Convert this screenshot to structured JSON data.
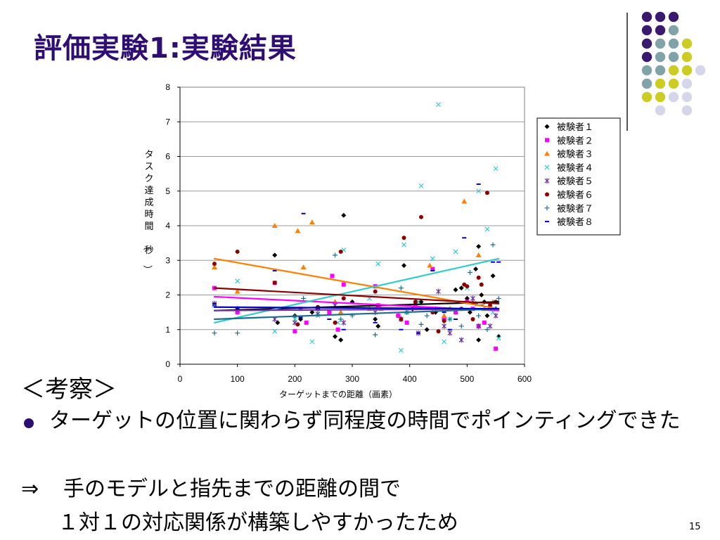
{
  "slide": {
    "title": "評価実験1:実験結果",
    "consider_heading": "＜考察＞",
    "bullet_text": "ターゲットの位置に関わらず同程度の時間でポインティングできた",
    "arrow_symbol": "⇒",
    "arrow_text": "手のモデルと指先までの距離の間で",
    "indent_text": "１対１の対応関係が構築しやすかったため",
    "page_number": "15"
  },
  "decoration": {
    "colors": [
      "#3a1a6e",
      "#7fa3a6",
      "#cccc22",
      "#d6d6ea"
    ],
    "dot_grid": [
      [
        "a",
        "a",
        "a",
        null,
        null
      ],
      [
        "a",
        "a",
        "b",
        null,
        null
      ],
      [
        "a",
        "b",
        "b",
        "c",
        null
      ],
      [
        "a",
        "b",
        "b",
        "c",
        null
      ],
      [
        "b",
        "b",
        "c",
        "c",
        "d"
      ],
      [
        "b",
        "c",
        "c",
        "d",
        null
      ],
      [
        "c",
        "c",
        "d",
        "d",
        null
      ],
      [
        null,
        "d",
        null,
        "d",
        null
      ]
    ]
  },
  "chart_data": {
    "type": "scatter",
    "xlabel": "ターゲットまでの距離（画素）",
    "ylabel": "タスク達成時間（秒）",
    "xlim": [
      0,
      600
    ],
    "ylim": [
      0,
      8
    ],
    "xticks": [
      "0",
      "100",
      "200",
      "300",
      "400",
      "500",
      "600"
    ],
    "yticks": [
      "0",
      "1",
      "2",
      "3",
      "4",
      "5",
      "6",
      "7",
      "8"
    ],
    "grid": true,
    "legend_position": "right",
    "series": [
      {
        "name": "被験者１",
        "color": "#000000",
        "marker": "diamond",
        "trend": [
          [
            60,
            1.55
          ],
          [
            555,
            1.8
          ]
        ],
        "points": [
          [
            60,
            1.7
          ],
          [
            100,
            1.5
          ],
          [
            170,
            1.2
          ],
          [
            165,
            3.15
          ],
          [
            200,
            1.4
          ],
          [
            210,
            1.3
          ],
          [
            230,
            1.5
          ],
          [
            240,
            1.6
          ],
          [
            270,
            0.8
          ],
          [
            280,
            0.7
          ],
          [
            285,
            4.3
          ],
          [
            300,
            1.8
          ],
          [
            340,
            1.3
          ],
          [
            345,
            1.1
          ],
          [
            380,
            1.4
          ],
          [
            390,
            2.85
          ],
          [
            405,
            1.6
          ],
          [
            420,
            1.8
          ],
          [
            430,
            1.0
          ],
          [
            445,
            1.5
          ],
          [
            460,
            1.3
          ],
          [
            470,
            1.6
          ],
          [
            480,
            2.15
          ],
          [
            490,
            2.2
          ],
          [
            500,
            1.9
          ],
          [
            505,
            1.5
          ],
          [
            515,
            2.75
          ],
          [
            520,
            3.4
          ],
          [
            525,
            2.0
          ],
          [
            520,
            0.7
          ],
          [
            530,
            1.8
          ],
          [
            535,
            1.4
          ],
          [
            545,
            2.55
          ],
          [
            550,
            1.6
          ],
          [
            555,
            0.8
          ]
        ]
      },
      {
        "name": "被験者２",
        "color": "#ff00ff",
        "marker": "square",
        "trend": [
          [
            60,
            1.95
          ],
          [
            555,
            1.55
          ]
        ],
        "points": [
          [
            60,
            2.2
          ],
          [
            100,
            1.5
          ],
          [
            165,
            2.35
          ],
          [
            200,
            0.95
          ],
          [
            210,
            1.6
          ],
          [
            220,
            1.2
          ],
          [
            260,
            1.5
          ],
          [
            265,
            2.55
          ],
          [
            275,
            1.0
          ],
          [
            285,
            2.3
          ],
          [
            340,
            2.25
          ],
          [
            345,
            1.7
          ],
          [
            380,
            1.4
          ],
          [
            395,
            1.2
          ],
          [
            410,
            1.7
          ],
          [
            440,
            2.75
          ],
          [
            460,
            1.3
          ],
          [
            480,
            1.5
          ],
          [
            500,
            1.8
          ],
          [
            510,
            1.6
          ],
          [
            520,
            1.1
          ],
          [
            530,
            1.2
          ],
          [
            540,
            1.6
          ],
          [
            550,
            0.45
          ]
        ]
      },
      {
        "name": "被験者３",
        "color": "#ff7f00",
        "marker": "triangle",
        "trend": [
          [
            60,
            3.05
          ],
          [
            555,
            1.6
          ]
        ],
        "points": [
          [
            60,
            2.8
          ],
          [
            100,
            2.1
          ],
          [
            165,
            4.0
          ],
          [
            205,
            3.85
          ],
          [
            215,
            2.8
          ],
          [
            230,
            4.1
          ],
          [
            270,
            1.8
          ],
          [
            280,
            1.5
          ],
          [
            330,
            1.6
          ],
          [
            350,
            1.6
          ],
          [
            395,
            1.5
          ],
          [
            435,
            2.85
          ],
          [
            460,
            1.4
          ],
          [
            470,
            1.6
          ],
          [
            495,
            4.7
          ],
          [
            510,
            1.8
          ],
          [
            520,
            3.15
          ],
          [
            530,
            1.6
          ],
          [
            545,
            1.8
          ]
        ]
      },
      {
        "name": "被験者４",
        "color": "#33cccc",
        "marker": "x",
        "trend": [
          [
            60,
            1.2
          ],
          [
            555,
            3.05
          ]
        ],
        "points": [
          [
            60,
            1.7
          ],
          [
            100,
            2.4
          ],
          [
            165,
            0.95
          ],
          [
            200,
            1.3
          ],
          [
            230,
            0.65
          ],
          [
            240,
            1.4
          ],
          [
            275,
            1.2
          ],
          [
            285,
            3.3
          ],
          [
            330,
            1.9
          ],
          [
            345,
            2.9
          ],
          [
            385,
            0.4
          ],
          [
            390,
            3.45
          ],
          [
            395,
            1.5
          ],
          [
            415,
            1.8
          ],
          [
            420,
            5.15
          ],
          [
            440,
            3.05
          ],
          [
            450,
            7.5
          ],
          [
            460,
            0.65
          ],
          [
            470,
            1.3
          ],
          [
            480,
            3.25
          ],
          [
            490,
            0.7
          ],
          [
            500,
            2.2
          ],
          [
            520,
            5.0
          ],
          [
            535,
            3.9
          ],
          [
            545,
            1.5
          ],
          [
            550,
            5.65
          ],
          [
            555,
            0.75
          ]
        ]
      },
      {
        "name": "被験者５",
        "color": "#7030a0",
        "marker": "star",
        "trend": [
          [
            60,
            1.55
          ],
          [
            555,
            1.6
          ]
        ],
        "points": [
          [
            60,
            1.75
          ],
          [
            100,
            1.6
          ],
          [
            165,
            1.3
          ],
          [
            200,
            1.2
          ],
          [
            240,
            1.45
          ],
          [
            270,
            1.7
          ],
          [
            285,
            1.2
          ],
          [
            340,
            1.5
          ],
          [
            385,
            1.3
          ],
          [
            415,
            0.9
          ],
          [
            450,
            2.1
          ],
          [
            460,
            1.1
          ],
          [
            470,
            0.9
          ],
          [
            490,
            0.7
          ],
          [
            510,
            1.9
          ],
          [
            520,
            1.1
          ],
          [
            540,
            1.1
          ],
          [
            550,
            1.4
          ]
        ]
      },
      {
        "name": "被験者６",
        "color": "#8b0000",
        "marker": "circle",
        "trend": [
          [
            60,
            2.2
          ],
          [
            555,
            1.75
          ]
        ],
        "points": [
          [
            60,
            2.9
          ],
          [
            100,
            3.25
          ],
          [
            165,
            2.35
          ],
          [
            205,
            1.15
          ],
          [
            240,
            1.65
          ],
          [
            270,
            1.2
          ],
          [
            280,
            3.25
          ],
          [
            285,
            1.9
          ],
          [
            340,
            2.1
          ],
          [
            385,
            1.3
          ],
          [
            390,
            3.65
          ],
          [
            410,
            1.8
          ],
          [
            420,
            4.25
          ],
          [
            440,
            1.5
          ],
          [
            450,
            0.95
          ],
          [
            460,
            1.25
          ],
          [
            490,
            1.6
          ],
          [
            495,
            2.3
          ],
          [
            500,
            2.25
          ],
          [
            510,
            1.3
          ],
          [
            520,
            2.5
          ],
          [
            525,
            2.3
          ],
          [
            535,
            4.95
          ],
          [
            540,
            1.7
          ],
          [
            550,
            1.8
          ]
        ]
      },
      {
        "name": "被験者７",
        "color": "#1f6f8b",
        "marker": "plus",
        "trend": [
          [
            60,
            1.3
          ],
          [
            555,
            1.6
          ]
        ],
        "points": [
          [
            60,
            0.9
          ],
          [
            100,
            0.9
          ],
          [
            200,
            1.4
          ],
          [
            215,
            1.9
          ],
          [
            240,
            1.55
          ],
          [
            270,
            3.15
          ],
          [
            280,
            1.3
          ],
          [
            300,
            1.4
          ],
          [
            340,
            0.85
          ],
          [
            385,
            2.2
          ],
          [
            395,
            1.5
          ],
          [
            420,
            1.15
          ],
          [
            430,
            1.4
          ],
          [
            445,
            1.6
          ],
          [
            470,
            1.3
          ],
          [
            490,
            1.1
          ],
          [
            505,
            2.65
          ],
          [
            515,
            1.75
          ],
          [
            520,
            1.4
          ],
          [
            535,
            1.0
          ],
          [
            545,
            3.45
          ],
          [
            555,
            1.9
          ]
        ]
      },
      {
        "name": "被験者８",
        "color": "#0000cc",
        "marker": "dash",
        "trend": [
          [
            60,
            1.65
          ],
          [
            555,
            1.6
          ]
        ],
        "points": [
          [
            60,
            1.75
          ],
          [
            100,
            1.6
          ],
          [
            165,
            2.7
          ],
          [
            210,
            1.35
          ],
          [
            215,
            4.35
          ],
          [
            260,
            1.3
          ],
          [
            285,
            1.0
          ],
          [
            340,
            1.2
          ],
          [
            385,
            1.0
          ],
          [
            415,
            0.9
          ],
          [
            440,
            2.7
          ],
          [
            460,
            1.5
          ],
          [
            470,
            1.0
          ],
          [
            480,
            1.3
          ],
          [
            495,
            3.65
          ],
          [
            520,
            5.2
          ],
          [
            525,
            1.7
          ],
          [
            545,
            2.95
          ],
          [
            555,
            2.95
          ]
        ]
      }
    ]
  }
}
